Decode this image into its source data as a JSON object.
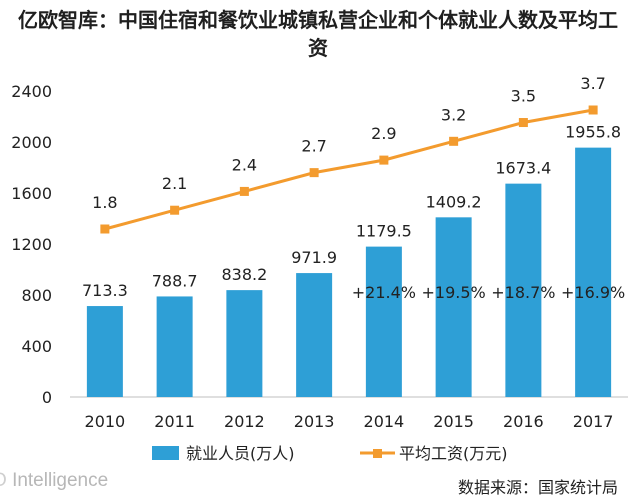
{
  "header": {
    "title": "亿欧智库：中国住宿和餐饮业城镇私营企业和个体就业人数及平均工资"
  },
  "footer": {
    "watermark": "Intelligence",
    "watermark_glyph": "O",
    "source": "数据来源：国家统计局"
  },
  "colors": {
    "bar": "#2E9FD6",
    "line": "#F39B2E",
    "axis": "#bfbfbf",
    "text": "#222222"
  },
  "chart_data": {
    "type": "bar+line",
    "title": "亿欧智库：中国住宿和餐饮业城镇私营企业和个体就业人数及平均工资",
    "categories": [
      "2010",
      "2011",
      "2012",
      "2013",
      "2014",
      "2015",
      "2016",
      "2017"
    ],
    "ylim": [
      0,
      2400
    ],
    "yticks": [
      0,
      400,
      800,
      1200,
      1600,
      2000,
      2400
    ],
    "series": [
      {
        "name": "就业人员(万人)",
        "type": "bar",
        "values": [
          713.3,
          788.7,
          838.2,
          971.9,
          1179.5,
          1409.2,
          1673.4,
          1955.8
        ],
        "labels": [
          "713.3",
          "788.7",
          "838.2",
          "971.9",
          "1179.5",
          "1409.2",
          "1673.4",
          "1955.8"
        ],
        "growth": [
          "",
          "",
          "",
          "",
          "+21.4%",
          "+19.5%",
          "+18.7%",
          "+16.9%"
        ]
      },
      {
        "name": "平均工资(万元)",
        "type": "line",
        "values": [
          1.8,
          2.1,
          2.4,
          2.7,
          2.9,
          3.2,
          3.5,
          3.7
        ],
        "labels": [
          "1.8",
          "2.1",
          "2.4",
          "2.7",
          "2.9",
          "3.2",
          "3.5",
          "3.7"
        ]
      }
    ],
    "legend": [
      "就业人员(万人)",
      "平均工资(万元)"
    ],
    "legend_position": "bottom",
    "grid": false
  }
}
